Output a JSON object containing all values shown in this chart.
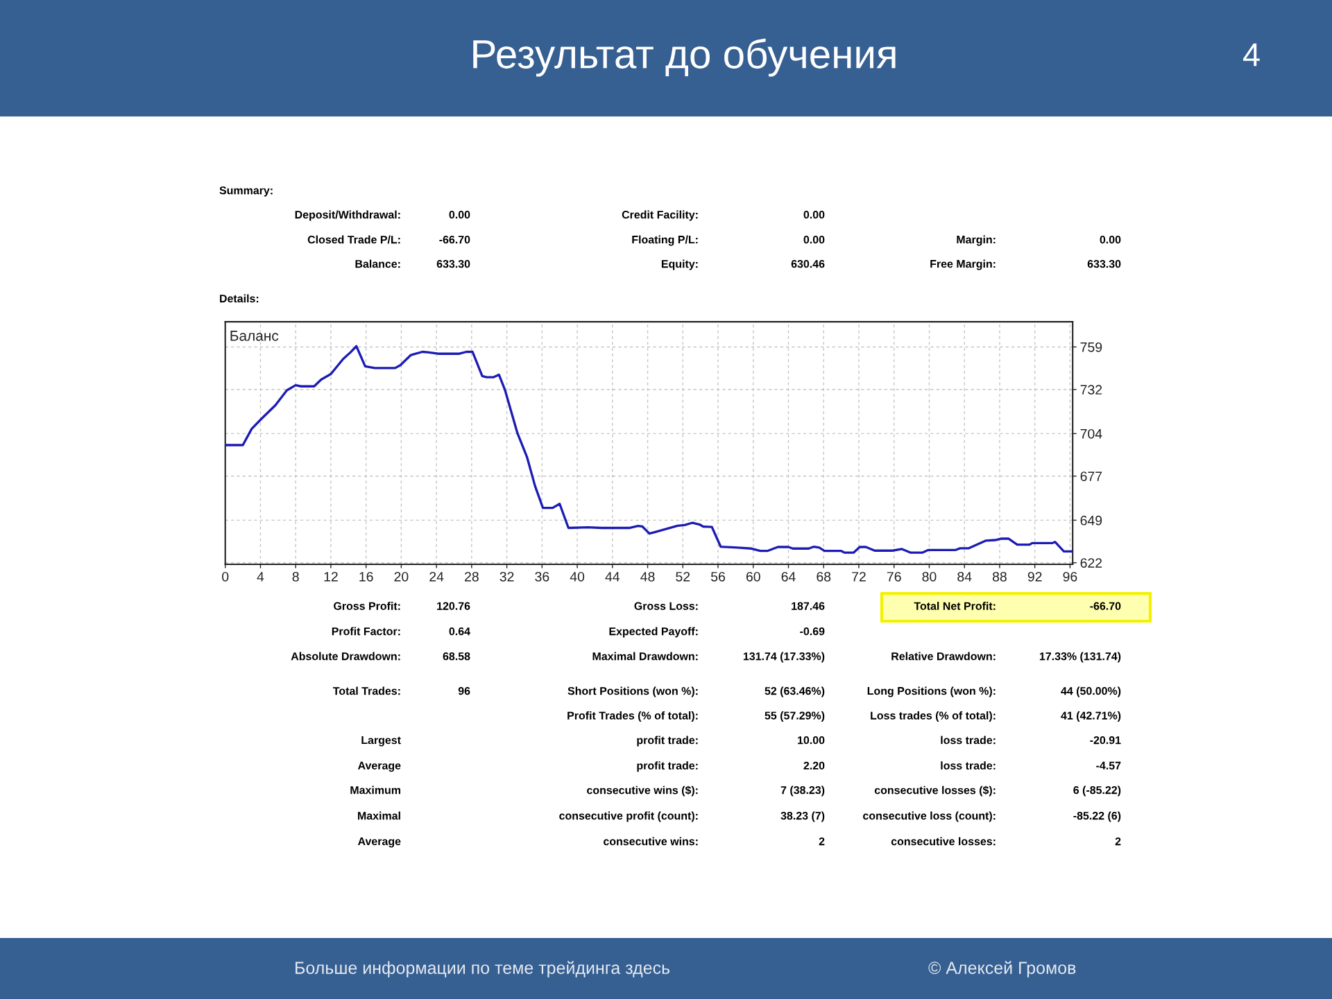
{
  "chart_data": {
    "type": "line",
    "title": "Результат до обучения",
    "annotations": [
      "Баланс",
      "4",
      "Summary:",
      "Deposit/Withdrawal:",
      "0.00",
      "Credit Facility:",
      "0.00",
      "Closed Trade P/L:",
      "-66.70",
      "Floating P/L:",
      "0.00",
      "Margin:",
      "0.00",
      "Balance:",
      "633.30",
      "Equity:",
      "630.46",
      "Free Margin:",
      "633.30",
      "Details:",
      "Gross Profit:",
      "120.76",
      "Gross Loss:",
      "187.46",
      "Total Net Profit:",
      "-66.70",
      "Profit Factor:",
      "0.64",
      "Expected Payoff:",
      "-0.69",
      "Absolute Drawdown:",
      "68.58",
      "Maximal Drawdown:",
      "131.74 (17.33%)",
      "Relative Drawdown:",
      "17.33% (131.74)",
      "Total Trades:",
      "96",
      "Short Positions (won %):",
      "52 (63.46%)",
      "Long Positions (won %):",
      "44 (50.00%)",
      "Profit Trades (% of total):",
      "55 (57.29%)",
      "Loss trades (% of total):",
      "41 (42.71%)",
      "Largest",
      "profit trade:",
      "10.00",
      "loss trade:",
      "-20.91",
      "Average",
      "profit trade:",
      "2.20",
      "loss trade:",
      "-4.57",
      "Maximum",
      "consecutive wins ($):",
      "7 (38.23)",
      "consecutive losses ($):",
      "6 (-85.22)",
      "Maximal",
      "consecutive profit (count):",
      "38.23 (7)",
      "consecutive loss (count):",
      "-85.22 (6)",
      "Average",
      "consecutive wins:",
      "2",
      "consecutive losses:",
      "2",
      "Больше информации по теме трейдинга здесь",
      "© Алексей Громов"
    ],
    "x": [
      0,
      2.0,
      3.0,
      4.1,
      5.7,
      7.0,
      8.0,
      8.6,
      10.1,
      10.9,
      12.0,
      13.4,
      14.2,
      14.9,
      15.9,
      17.0,
      19.3,
      19.9,
      21.1,
      22.4,
      23.0,
      24.2,
      26.6,
      27.4,
      28.1,
      29.2,
      29.7,
      30.5,
      31.1,
      31.8,
      33.2,
      34.3,
      35.2,
      36.1,
      37.2,
      38.0,
      39.0,
      41.2,
      42.8,
      45.9,
      46.9,
      47.4,
      48.2,
      48.8,
      50.2,
      51.4,
      52.2,
      53.1,
      53.9,
      54.3,
      55.3,
      56.3,
      58.2,
      59.8,
      60.8,
      61.6,
      62.8,
      64.0,
      64.5,
      66.3,
      66.9,
      67.5,
      68.1,
      70.0,
      70.4,
      71.4,
      72.1,
      72.8,
      73.8,
      75.8,
      76.9,
      77.9,
      79.2,
      79.9,
      83.0,
      83.5,
      84.5,
      86.4,
      87.5,
      88.2,
      89.0,
      90.0,
      91.4,
      91.7,
      94.0,
      94.3,
      95.3,
      96.3
    ],
    "series": [
      {
        "color": "#1c1cb4",
        "values": [
          696.7,
          696.7,
          707,
          713.3,
          722,
          731.5,
          734.7,
          734,
          734,
          738.3,
          741.8,
          751.4,
          755.4,
          759.5,
          746.7,
          745.6,
          745.6,
          747.4,
          753.9,
          755.9,
          755.6,
          754.7,
          754.7,
          755.9,
          755.9,
          740.5,
          739.8,
          739.8,
          741.4,
          731.5,
          704.3,
          688.9,
          670.8,
          656.8,
          656.8,
          659.4,
          644.1,
          644.5,
          644.1,
          644.1,
          645.4,
          645,
          640.5,
          641.4,
          643.6,
          645.5,
          645.9,
          647.4,
          646.3,
          645,
          644.7,
          632.2,
          631.6,
          631,
          629.5,
          629.5,
          632,
          632,
          631,
          631,
          632.2,
          631.6,
          629.5,
          629.5,
          628.4,
          628.4,
          632,
          632,
          629.7,
          629.7,
          630.7,
          628.4,
          628.4,
          630.1,
          630.1,
          631.2,
          631.2,
          636,
          636.4,
          637.3,
          637.3,
          633.5,
          633.5,
          634.5,
          634.5,
          635.2,
          629.2,
          629.2
        ]
      }
    ],
    "xlim": [
      0,
      96.3
    ],
    "ylim": [
      621,
      775
    ],
    "xticks": [
      0,
      4,
      8,
      12,
      16,
      20,
      24,
      28,
      32,
      36,
      40,
      44,
      48,
      52,
      56,
      60,
      64,
      68,
      72,
      76,
      80,
      84,
      88,
      92,
      96
    ],
    "yticks": [
      622,
      649,
      677,
      704,
      732,
      759
    ],
    "grid": true
  }
}
